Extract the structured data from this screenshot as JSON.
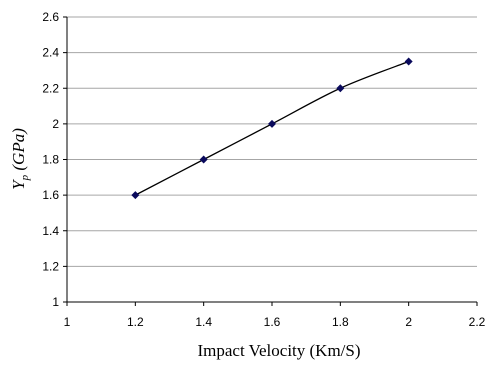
{
  "chart_data": {
    "type": "scatter",
    "x": [
      1.2,
      1.4,
      1.6,
      1.8,
      2.0
    ],
    "y": [
      1.6,
      1.8,
      2.0,
      2.2,
      2.35
    ],
    "xlim": [
      1,
      2.2
    ],
    "ylim": [
      1,
      2.6
    ],
    "xticks": [
      "1",
      "1.2",
      "1.4",
      "1.6",
      "1.8",
      "2",
      "2.2"
    ],
    "yticks": [
      "1",
      "1.2",
      "1.4",
      "1.6",
      "1.8",
      "2",
      "2.2",
      "2.4",
      "2.6"
    ],
    "xlabel": "Impact Velocity (Km/S)",
    "ylabel_main": "Y",
    "ylabel_sub": "p",
    "ylabel_unit": " (GPa)",
    "trendline": "smooth",
    "grid": "horizontal",
    "legend": "none",
    "colors": {
      "marker": "#0a0a5c",
      "line": "#000000",
      "grid": "#a6a6a6"
    }
  }
}
